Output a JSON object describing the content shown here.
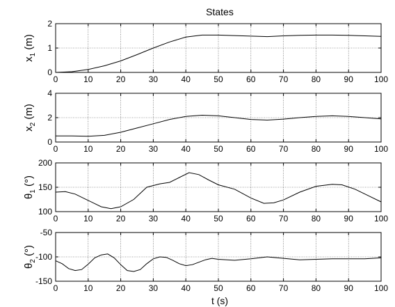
{
  "chart_data": {
    "type": "line",
    "title": "States",
    "xlabel": "t (s)",
    "xlim": [
      0,
      100
    ],
    "xticks": [
      0,
      10,
      20,
      30,
      40,
      50,
      60,
      70,
      80,
      90,
      100
    ],
    "grid": true,
    "panels": [
      {
        "ylabel": {
          "main": "x",
          "sub": "1",
          "rest": " (m)"
        },
        "ylim": [
          0,
          2
        ],
        "yticks": [
          0,
          1,
          2
        ],
        "series": [
          {
            "x": [
              0,
              5,
              10,
              15,
              20,
              25,
              30,
              35,
              40,
              45,
              50,
              55,
              60,
              65,
              70,
              75,
              80,
              85,
              90,
              95,
              100
            ],
            "y": [
              0.0,
              0.03,
              0.12,
              0.27,
              0.47,
              0.73,
              1.0,
              1.25,
              1.45,
              1.53,
              1.53,
              1.51,
              1.49,
              1.47,
              1.5,
              1.52,
              1.53,
              1.53,
              1.52,
              1.5,
              1.48
            ]
          }
        ]
      },
      {
        "ylabel": {
          "main": "x",
          "sub": "2",
          "rest": " (m)"
        },
        "ylim": [
          0,
          4
        ],
        "yticks": [
          0,
          2,
          4
        ],
        "series": [
          {
            "x": [
              0,
              5,
              10,
              15,
              20,
              25,
              30,
              35,
              40,
              45,
              50,
              55,
              60,
              65,
              70,
              75,
              80,
              85,
              90,
              95,
              100
            ],
            "y": [
              0.5,
              0.5,
              0.47,
              0.55,
              0.8,
              1.15,
              1.5,
              1.85,
              2.1,
              2.2,
              2.15,
              2.0,
              1.85,
              1.8,
              1.88,
              2.0,
              2.1,
              2.15,
              2.1,
              2.0,
              1.9
            ]
          }
        ]
      },
      {
        "ylabel": {
          "main": "θ",
          "sub": "1",
          "rest": " (°)"
        },
        "ylim": [
          100,
          200
        ],
        "yticks": [
          100,
          150,
          200
        ],
        "series": [
          {
            "x": [
              0,
              3,
              6,
              10,
              14,
              17,
              20,
              24,
              28,
              32,
              35,
              38,
              41,
              44,
              47,
              50,
              55,
              60,
              64,
              67,
              70,
              75,
              80,
              85,
              88,
              92,
              96,
              100
            ],
            "y": [
              140,
              141,
              136,
              123,
              110,
              106,
              110,
              125,
              150,
              157,
              160,
              170,
              180,
              176,
              165,
              155,
              146,
              128,
              117,
              118,
              124,
              140,
              152,
              156,
              155,
              146,
              133,
              120
            ]
          }
        ]
      },
      {
        "ylabel": {
          "main": "θ",
          "sub": "2",
          "rest": " (°)"
        },
        "ylim": [
          -150,
          -50
        ],
        "yticks": [
          -150,
          -100,
          -50
        ],
        "series": [
          {
            "x": [
              0,
              2,
              4,
              6,
              8,
              10,
              12,
              14,
              16,
              18,
              20,
              22,
              24,
              26,
              28,
              30,
              32,
              34,
              36,
              38,
              40,
              42,
              44,
              46,
              48,
              50,
              55,
              60,
              65,
              70,
              75,
              80,
              85,
              90,
              95,
              100
            ],
            "y": [
              -108,
              -114,
              -124,
              -128,
              -126,
              -115,
              -102,
              -96,
              -94,
              -102,
              -116,
              -128,
              -130,
              -126,
              -114,
              -104,
              -100,
              -101,
              -107,
              -114,
              -118,
              -116,
              -111,
              -106,
              -103,
              -105,
              -107,
              -104,
              -100,
              -103,
              -106,
              -105,
              -104,
              -104,
              -104,
              -102
            ]
          }
        ]
      }
    ]
  }
}
